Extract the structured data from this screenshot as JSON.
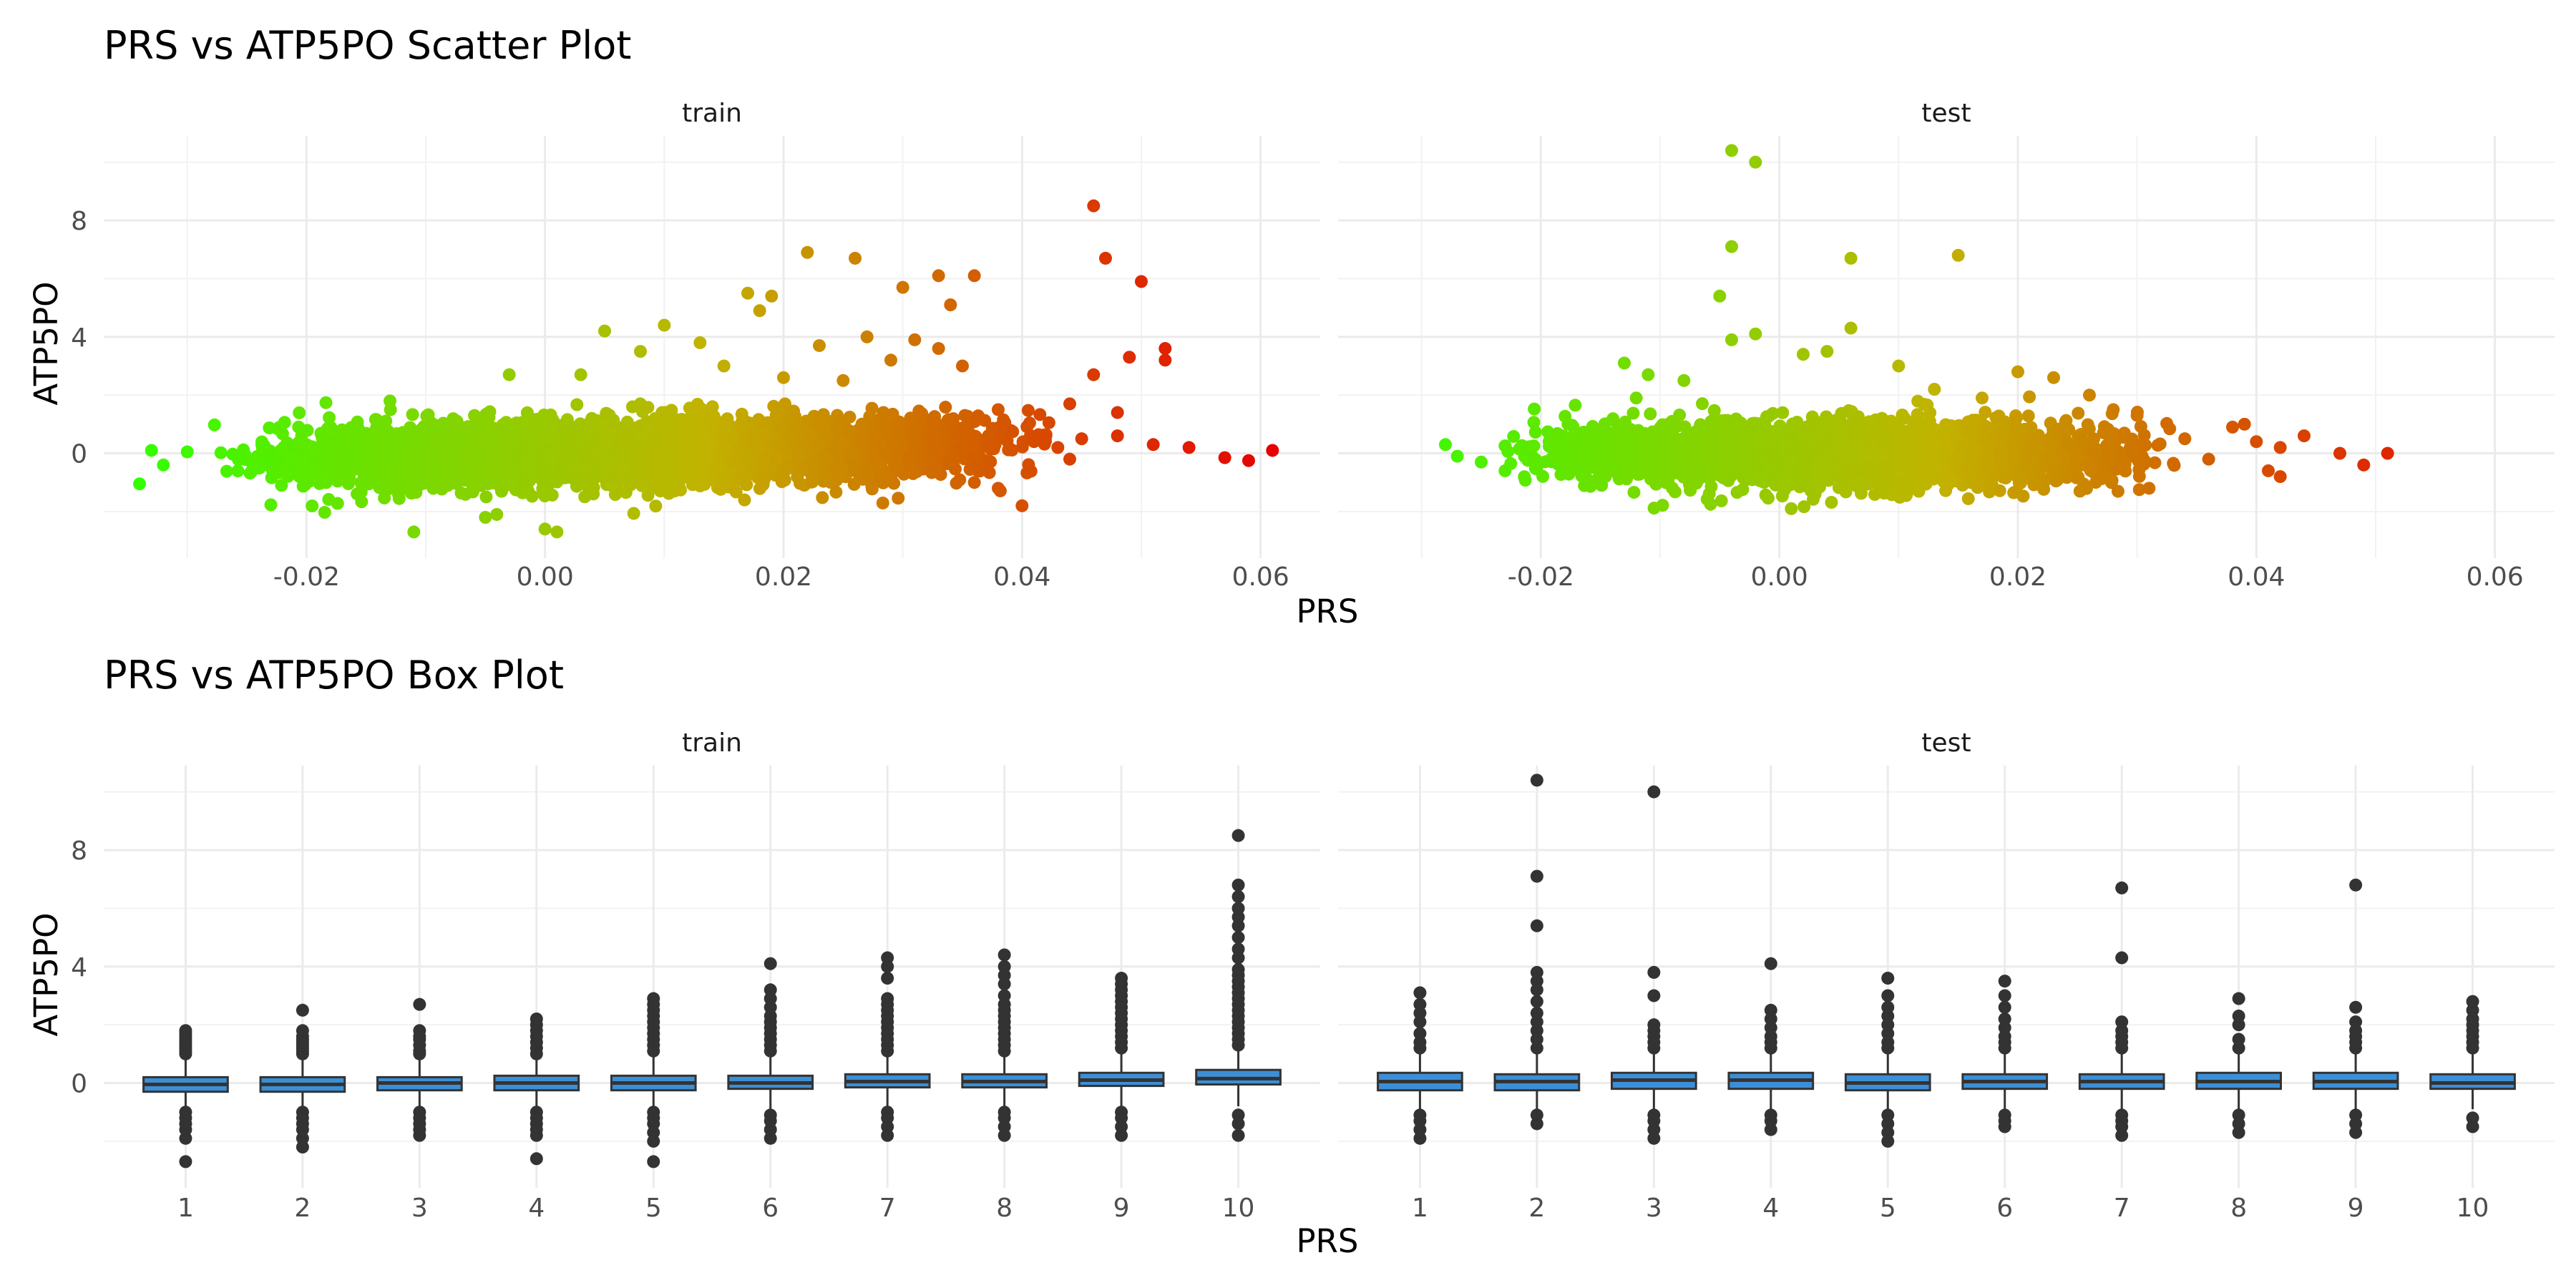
{
  "chart_data": [
    {
      "type": "scatter",
      "title": "PRS vs ATP5PO Scatter Plot",
      "xlabel": "PRS",
      "ylabel": "ATP5PO",
      "xlim": [
        -0.037,
        0.065
      ],
      "ylim": [
        -3.6,
        10.9
      ],
      "x_ticks": [
        -0.02,
        0.0,
        0.02,
        0.04,
        0.06
      ],
      "x_tick_labels": [
        "-0.02",
        "0.00",
        "0.02",
        "0.04",
        "0.06"
      ],
      "y_ticks": [
        0,
        4,
        8
      ],
      "y_tick_labels": [
        "0",
        "4",
        "8"
      ],
      "grid": true,
      "legend": "none",
      "color_scale": {
        "low": "#33ff00",
        "mid": "#c2b300",
        "high": "#e60000"
      },
      "facets": [
        {
          "name": "train",
          "points": [
            [
              -0.034,
              -1.05
            ],
            [
              -0.033,
              0.1
            ],
            [
              -0.032,
              -0.4
            ],
            [
              -0.03,
              0.05
            ],
            [
              -0.011,
              -2.7
            ],
            [
              -0.005,
              -2.2
            ],
            [
              0.0,
              -2.6
            ],
            [
              0.001,
              -2.7
            ],
            [
              -0.003,
              2.7
            ],
            [
              -0.013,
              1.8
            ],
            [
              0.003,
              2.7
            ],
            [
              0.005,
              4.2
            ],
            [
              0.01,
              4.4
            ],
            [
              0.008,
              3.5
            ],
            [
              0.013,
              3.8
            ],
            [
              0.015,
              3.0
            ],
            [
              0.017,
              5.5
            ],
            [
              0.019,
              5.4
            ],
            [
              0.018,
              4.9
            ],
            [
              0.022,
              6.9
            ],
            [
              0.026,
              6.7
            ],
            [
              0.03,
              5.7
            ],
            [
              0.033,
              6.1
            ],
            [
              0.036,
              6.1
            ],
            [
              0.034,
              5.1
            ],
            [
              0.027,
              4.0
            ],
            [
              0.031,
              3.9
            ],
            [
              0.033,
              3.6
            ],
            [
              0.035,
              3.0
            ],
            [
              0.023,
              3.7
            ],
            [
              0.029,
              3.2
            ],
            [
              0.02,
              2.6
            ],
            [
              0.025,
              2.5
            ],
            [
              0.038,
              1.5
            ],
            [
              0.04,
              -1.8
            ],
            [
              0.042,
              0.6
            ],
            [
              0.044,
              1.7
            ],
            [
              0.046,
              8.5
            ],
            [
              0.047,
              6.7
            ],
            [
              0.046,
              2.7
            ],
            [
              0.048,
              1.4
            ],
            [
              0.048,
              0.6
            ],
            [
              0.049,
              3.3
            ],
            [
              0.05,
              5.9
            ],
            [
              0.052,
              3.2
            ],
            [
              0.052,
              3.6
            ],
            [
              0.051,
              0.3
            ],
            [
              0.054,
              0.2
            ],
            [
              0.057,
              -0.15
            ],
            [
              0.059,
              -0.25
            ],
            [
              0.061,
              0.1
            ],
            [
              0.038,
              -1.2
            ],
            [
              0.036,
              -1.0
            ],
            [
              0.041,
              0.4
            ],
            [
              0.043,
              0.2
            ],
            [
              0.044,
              -0.2
            ],
            [
              0.045,
              0.5
            ]
          ]
        },
        {
          "name": "test",
          "points": [
            [
              -0.028,
              0.3
            ],
            [
              -0.027,
              -0.1
            ],
            [
              -0.025,
              -0.3
            ],
            [
              -0.023,
              -0.6
            ],
            [
              -0.004,
              10.4
            ],
            [
              -0.002,
              10.0
            ],
            [
              -0.004,
              7.1
            ],
            [
              -0.005,
              5.4
            ],
            [
              0.006,
              6.7
            ],
            [
              0.015,
              6.8
            ],
            [
              0.006,
              4.3
            ],
            [
              -0.004,
              3.9
            ],
            [
              -0.002,
              4.1
            ],
            [
              -0.013,
              3.1
            ],
            [
              -0.011,
              2.7
            ],
            [
              -0.008,
              2.5
            ],
            [
              0.002,
              3.4
            ],
            [
              0.004,
              3.5
            ],
            [
              0.01,
              3.0
            ],
            [
              0.02,
              2.8
            ],
            [
              0.023,
              2.6
            ],
            [
              0.026,
              2.0
            ],
            [
              0.003,
              -1.4
            ],
            [
              0.001,
              -1.9
            ],
            [
              0.03,
              1.3
            ],
            [
              0.031,
              -1.2
            ],
            [
              0.034,
              0.5
            ],
            [
              0.036,
              -0.2
            ],
            [
              0.038,
              0.9
            ],
            [
              0.039,
              1.0
            ],
            [
              0.04,
              0.4
            ],
            [
              0.041,
              -0.6
            ],
            [
              0.042,
              -0.8
            ],
            [
              0.042,
              0.2
            ],
            [
              0.044,
              0.6
            ],
            [
              0.047,
              0.0
            ],
            [
              0.049,
              -0.4
            ],
            [
              0.051,
              0.0
            ],
            [
              -0.012,
              1.9
            ],
            [
              0.013,
              2.2
            ],
            [
              0.017,
              1.9
            ],
            [
              0.028,
              1.5
            ]
          ]
        }
      ]
    },
    {
      "type": "box",
      "title": "PRS vs ATP5PO Box Plot",
      "xlabel": "PRS",
      "ylabel": "ATP5PO",
      "categories": [
        "1",
        "2",
        "3",
        "4",
        "5",
        "6",
        "7",
        "8",
        "9",
        "10"
      ],
      "ylim": [
        -3.6,
        10.9
      ],
      "y_ticks": [
        0,
        4,
        8
      ],
      "y_tick_labels": [
        "0",
        "4",
        "8"
      ],
      "grid": true,
      "box_fill": "#3c8fd6",
      "facets": [
        {
          "name": "train",
          "boxes": [
            {
              "q1": -0.3,
              "median": -0.05,
              "q3": 0.2,
              "lo": -0.9,
              "hi": 0.9,
              "outliers": [
                -2.7,
                -1.9,
                -1.6,
                -1.4,
                -1.2,
                -1.0,
                1.0,
                1.1,
                1.2,
                1.3,
                1.4,
                1.5,
                1.6,
                1.7,
                1.8
              ]
            },
            {
              "q1": -0.3,
              "median": -0.05,
              "q3": 0.2,
              "lo": -0.9,
              "hi": 0.9,
              "outliers": [
                -2.2,
                -1.9,
                -1.6,
                -1.4,
                -1.2,
                -1.0,
                1.0,
                1.1,
                1.2,
                1.3,
                1.4,
                1.5,
                1.6,
                1.8,
                2.5
              ]
            },
            {
              "q1": -0.25,
              "median": 0.0,
              "q3": 0.2,
              "lo": -0.9,
              "hi": 0.9,
              "outliers": [
                -1.8,
                -1.6,
                -1.4,
                -1.2,
                -1.0,
                1.0,
                1.1,
                1.3,
                1.5,
                1.6,
                1.8,
                2.7
              ]
            },
            {
              "q1": -0.25,
              "median": 0.0,
              "q3": 0.25,
              "lo": -0.9,
              "hi": 0.9,
              "outliers": [
                -2.6,
                -1.8,
                -1.6,
                -1.4,
                -1.2,
                -1.0,
                1.0,
                1.2,
                1.4,
                1.6,
                1.8,
                2.0,
                2.2
              ]
            },
            {
              "q1": -0.25,
              "median": 0.0,
              "q3": 0.25,
              "lo": -0.9,
              "hi": 1.0,
              "outliers": [
                -2.7,
                -2.0,
                -1.7,
                -1.4,
                -1.2,
                -1.0,
                1.1,
                1.3,
                1.5,
                1.7,
                1.9,
                2.1,
                2.3,
                2.5,
                2.7,
                2.9
              ]
            },
            {
              "q1": -0.2,
              "median": 0.0,
              "q3": 0.25,
              "lo": -0.9,
              "hi": 1.0,
              "outliers": [
                -1.9,
                -1.6,
                -1.3,
                -1.1,
                1.1,
                1.3,
                1.5,
                1.7,
                1.9,
                2.1,
                2.3,
                2.6,
                2.9,
                3.2,
                4.1
              ]
            },
            {
              "q1": -0.15,
              "median": 0.05,
              "q3": 0.3,
              "lo": -0.9,
              "hi": 1.0,
              "outliers": [
                -1.8,
                -1.5,
                -1.2,
                -1.0,
                1.1,
                1.3,
                1.5,
                1.7,
                1.9,
                2.1,
                2.3,
                2.5,
                2.7,
                2.9,
                3.6,
                4.0,
                4.3
              ]
            },
            {
              "q1": -0.15,
              "median": 0.05,
              "q3": 0.3,
              "lo": -0.9,
              "hi": 1.0,
              "outliers": [
                -1.8,
                -1.5,
                -1.2,
                -1.0,
                1.1,
                1.3,
                1.5,
                1.7,
                1.9,
                2.1,
                2.3,
                2.5,
                2.7,
                3.0,
                3.4,
                3.7,
                4.0,
                4.4
              ]
            },
            {
              "q1": -0.1,
              "median": 0.1,
              "q3": 0.35,
              "lo": -0.9,
              "hi": 1.1,
              "outliers": [
                -1.8,
                -1.5,
                -1.2,
                -1.0,
                1.2,
                1.4,
                1.6,
                1.8,
                2.0,
                2.2,
                2.4,
                2.6,
                2.8,
                3.0,
                3.2,
                3.4,
                3.6
              ]
            },
            {
              "q1": -0.05,
              "median": 0.15,
              "q3": 0.45,
              "lo": -0.8,
              "hi": 1.2,
              "outliers": [
                -1.8,
                -1.4,
                -1.1,
                1.3,
                1.5,
                1.7,
                1.9,
                2.1,
                2.3,
                2.5,
                2.7,
                2.9,
                3.1,
                3.3,
                3.5,
                3.7,
                3.9,
                4.3,
                4.6,
                5.0,
                5.4,
                5.7,
                6.0,
                6.4,
                6.8,
                8.5
              ]
            }
          ]
        },
        {
          "name": "test",
          "boxes": [
            {
              "q1": -0.25,
              "median": 0.05,
              "q3": 0.35,
              "lo": -0.9,
              "hi": 1.0,
              "outliers": [
                -1.9,
                -1.6,
                -1.3,
                -1.1,
                1.2,
                1.4,
                1.7,
                2.1,
                2.4,
                2.7,
                3.1
              ]
            },
            {
              "q1": -0.25,
              "median": 0.05,
              "q3": 0.3,
              "lo": -0.9,
              "hi": 1.0,
              "outliers": [
                -1.4,
                -1.1,
                1.2,
                1.5,
                1.8,
                2.1,
                2.4,
                2.8,
                3.2,
                3.5,
                3.8,
                5.4,
                7.1,
                10.4
              ]
            },
            {
              "q1": -0.2,
              "median": 0.1,
              "q3": 0.35,
              "lo": -0.9,
              "hi": 1.0,
              "outliers": [
                -1.9,
                -1.6,
                -1.3,
                -1.1,
                1.2,
                1.4,
                1.6,
                1.8,
                2.0,
                3.0,
                3.8,
                10.0
              ]
            },
            {
              "q1": -0.2,
              "median": 0.1,
              "q3": 0.35,
              "lo": -0.9,
              "hi": 1.0,
              "outliers": [
                -1.6,
                -1.3,
                -1.1,
                1.2,
                1.4,
                1.6,
                1.9,
                2.2,
                2.5,
                4.1
              ]
            },
            {
              "q1": -0.25,
              "median": 0.0,
              "q3": 0.3,
              "lo": -0.9,
              "hi": 1.0,
              "outliers": [
                -2.0,
                -1.7,
                -1.4,
                -1.1,
                1.2,
                1.4,
                1.7,
                2.0,
                2.3,
                2.6,
                3.0,
                3.6
              ]
            },
            {
              "q1": -0.2,
              "median": 0.05,
              "q3": 0.3,
              "lo": -0.9,
              "hi": 1.0,
              "outliers": [
                -1.5,
                -1.3,
                -1.1,
                1.2,
                1.4,
                1.6,
                1.9,
                2.2,
                2.6,
                3.0,
                3.5
              ]
            },
            {
              "q1": -0.2,
              "median": 0.05,
              "q3": 0.3,
              "lo": -0.9,
              "hi": 1.0,
              "outliers": [
                -1.8,
                -1.5,
                -1.3,
                -1.1,
                1.2,
                1.4,
                1.6,
                1.8,
                2.1,
                4.3,
                6.7
              ]
            },
            {
              "q1": -0.2,
              "median": 0.05,
              "q3": 0.35,
              "lo": -0.9,
              "hi": 1.0,
              "outliers": [
                -1.7,
                -1.4,
                -1.1,
                1.2,
                1.5,
                2.0,
                2.3,
                2.9
              ]
            },
            {
              "q1": -0.2,
              "median": 0.05,
              "q3": 0.35,
              "lo": -0.9,
              "hi": 1.0,
              "outliers": [
                -1.7,
                -1.4,
                -1.1,
                1.2,
                1.4,
                1.6,
                1.8,
                2.1,
                2.6,
                6.8
              ]
            },
            {
              "q1": -0.2,
              "median": 0.0,
              "q3": 0.3,
              "lo": -0.9,
              "hi": 1.0,
              "outliers": [
                -1.5,
                -1.2,
                1.2,
                1.4,
                1.6,
                1.8,
                2.0,
                2.2,
                2.5,
                2.8
              ]
            }
          ]
        }
      ]
    }
  ]
}
